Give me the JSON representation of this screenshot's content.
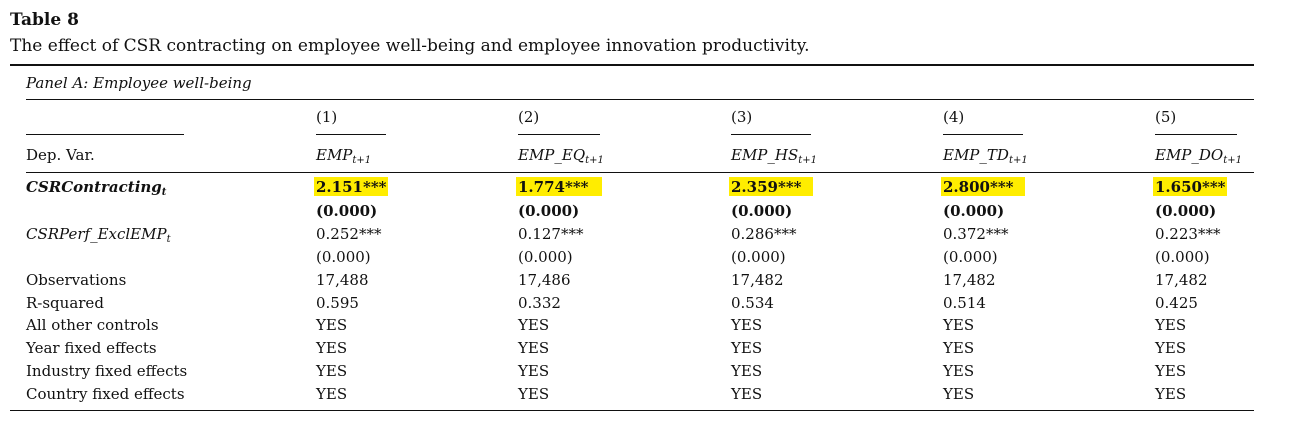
{
  "table_label": "Table 8",
  "table_title": "The effect of CSR contracting on employee well-being and employee innovation productivity.",
  "panel_title": "Panel A: Employee well-being",
  "columns": [
    {
      "num": "(1)",
      "var": "EMP",
      "sub": "t+1"
    },
    {
      "num": "(2)",
      "var": "EMP_EQ",
      "sub": "t+1"
    },
    {
      "num": "(3)",
      "var": "EMP_HS",
      "sub": "t+1"
    },
    {
      "num": "(4)",
      "var": "EMP_TD",
      "sub": "t+1"
    },
    {
      "num": "(5)",
      "var": "EMP_DO",
      "sub": "t+1"
    }
  ],
  "dep_var_label": "Dep. Var.",
  "rows": [
    {
      "label": "CSRContracting",
      "label_sub": "t",
      "style": "bold-italic",
      "highlight": true,
      "coef": [
        "2.151***",
        "1.774***",
        "2.359***",
        "2.800***",
        "1.650***"
      ],
      "pval": [
        "(0.000)",
        "(0.000)",
        "(0.000)",
        "(0.000)",
        "(0.000)"
      ]
    },
    {
      "label": "CSRPerf_ExclEMP",
      "label_sub": "t",
      "style": "italic",
      "highlight": false,
      "coef": [
        "0.252***",
        "0.127***",
        "0.286***",
        "0.372***",
        "0.223***"
      ],
      "pval": [
        "(0.000)",
        "(0.000)",
        "(0.000)",
        "(0.000)",
        "(0.000)"
      ]
    }
  ],
  "stats": [
    {
      "label": "Observations",
      "values": [
        "17,488",
        "17,486",
        "17,482",
        "17,482",
        "17,482"
      ]
    },
    {
      "label": "R-squared",
      "values": [
        "0.595",
        "0.332",
        "0.534",
        "0.514",
        "0.425"
      ]
    },
    {
      "label": "All other controls",
      "values": [
        "YES",
        "YES",
        "YES",
        "YES",
        "YES"
      ]
    },
    {
      "label": "Year fixed effects",
      "values": [
        "YES",
        "YES",
        "YES",
        "YES",
        "YES"
      ]
    },
    {
      "label": "Industry fixed effects",
      "values": [
        "YES",
        "YES",
        "YES",
        "YES",
        "YES"
      ]
    },
    {
      "label": "Country fixed effects",
      "values": [
        "YES",
        "YES",
        "YES",
        "YES",
        "YES"
      ]
    }
  ],
  "colors": {
    "highlight": "#ffed00",
    "text": "#111111"
  }
}
